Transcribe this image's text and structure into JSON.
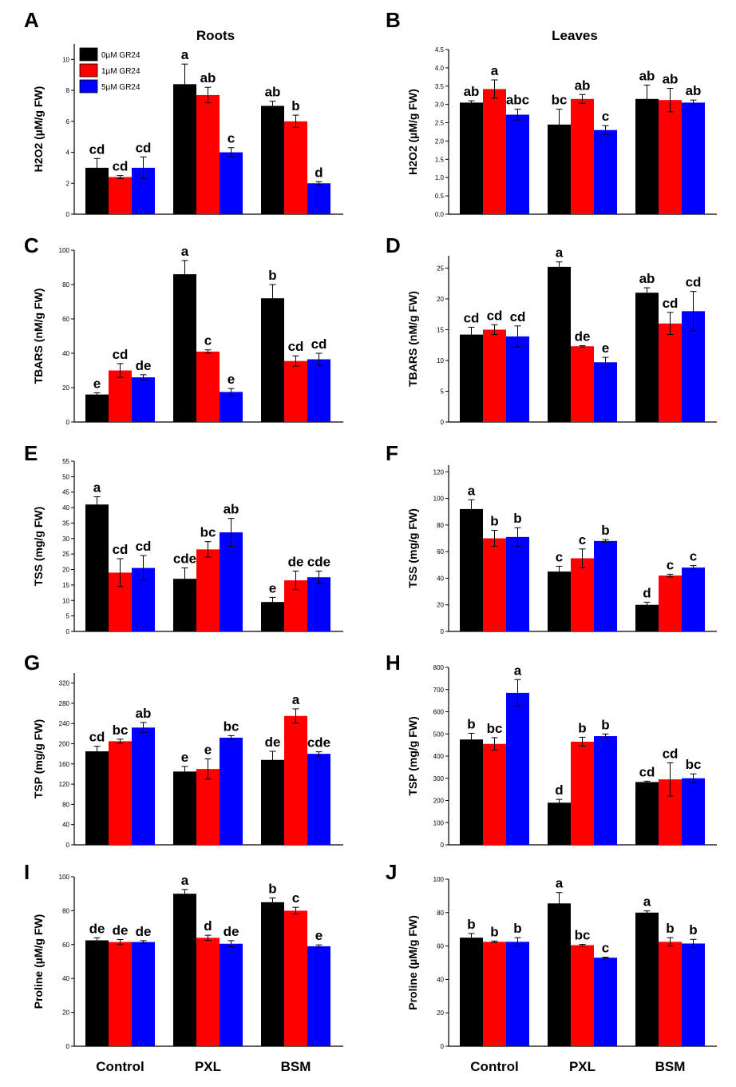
{
  "chart_data": {
    "legend": {
      "entries": [
        "0µM GR24",
        "1µM GR24",
        "5µM GR24"
      ],
      "colors": [
        "#000000",
        "#ff0000",
        "#0000ff"
      ]
    },
    "x_categories": [
      "Control",
      "PXL",
      "BSM"
    ],
    "panels": [
      {
        "id": "A",
        "type": "bar",
        "title": "Roots",
        "ylabel": "H2O2 (µM/g FW)",
        "ylim": [
          0,
          11
        ],
        "yticks": [
          0,
          2,
          4,
          6,
          8,
          10
        ],
        "ytick_labels": [
          "0",
          "2",
          "4",
          "6",
          "8",
          "10"
        ],
        "series": [
          {
            "name": "0µM GR24",
            "values": [
              3.0,
              8.4,
              7.0
            ],
            "errors": [
              0.6,
              1.3,
              0.3
            ],
            "labels": [
              "cd",
              "a",
              "ab"
            ]
          },
          {
            "name": "1µM GR24",
            "values": [
              2.4,
              7.7,
              6.0
            ],
            "errors": [
              0.1,
              0.5,
              0.4
            ],
            "labels": [
              "cd",
              "ab",
              "b"
            ]
          },
          {
            "name": "5µM GR24",
            "values": [
              3.0,
              4.0,
              2.0
            ],
            "errors": [
              0.7,
              0.3,
              0.1
            ],
            "labels": [
              "cd",
              "c",
              "d"
            ]
          }
        ]
      },
      {
        "id": "B",
        "type": "bar",
        "title": "Leaves",
        "ylabel": "H2O2 (µM/g FW)",
        "ylim": [
          0,
          4.5
        ],
        "yticks": [
          0,
          0.5,
          1,
          1.5,
          2,
          2.5,
          3,
          3.5,
          4,
          4.5
        ],
        "ytick_labels": [
          "0.0",
          "0.5",
          "1.0",
          "1.5",
          "2.0",
          "2.5",
          "3.0",
          "3.5",
          "4.0",
          "4.5"
        ],
        "series": [
          {
            "name": "0µM GR24",
            "values": [
              3.05,
              2.45,
              3.15
            ],
            "errors": [
              0.05,
              0.42,
              0.38
            ],
            "labels": [
              "ab",
              "bc",
              "ab"
            ]
          },
          {
            "name": "1µM GR24",
            "values": [
              3.42,
              3.15,
              3.12
            ],
            "errors": [
              0.25,
              0.12,
              0.32
            ],
            "labels": [
              "a",
              "ab",
              "ab"
            ]
          },
          {
            "name": "5µM GR24",
            "values": [
              2.72,
              2.3,
              3.05
            ],
            "errors": [
              0.15,
              0.12,
              0.07
            ],
            "labels": [
              "abc",
              "c",
              "ab"
            ]
          }
        ]
      },
      {
        "id": "C",
        "type": "bar",
        "title": "",
        "ylabel": "TBARS (nM/g FW)",
        "ylim": [
          0,
          100
        ],
        "yticks": [
          0,
          20,
          40,
          60,
          80,
          100
        ],
        "ytick_labels": [
          "0",
          "20",
          "40",
          "60",
          "80",
          "100"
        ],
        "series": [
          {
            "name": "0µM GR24",
            "values": [
              16,
              86,
              72
            ],
            "errors": [
              1,
              8,
              8
            ],
            "labels": [
              "e",
              "a",
              "b"
            ]
          },
          {
            "name": "1µM GR24",
            "values": [
              30,
              41,
              35.5
            ],
            "errors": [
              4,
              1,
              3
            ],
            "labels": [
              "cd",
              "c",
              "cd"
            ]
          },
          {
            "name": "5µM GR24",
            "values": [
              26,
              17.5,
              36.5
            ],
            "errors": [
              1.5,
              2,
              3.5
            ],
            "labels": [
              "de",
              "e",
              "cd"
            ]
          }
        ]
      },
      {
        "id": "D",
        "type": "bar",
        "title": "",
        "ylabel": "TBARS (nM/g FW)",
        "ylim": [
          0,
          27
        ],
        "yticks": [
          0,
          5,
          10,
          15,
          20,
          25
        ],
        "ytick_labels": [
          "0",
          "5",
          "10",
          "15",
          "20",
          "25"
        ],
        "series": [
          {
            "name": "0µM GR24",
            "values": [
              14.2,
              25.2,
              21
            ],
            "errors": [
              1.2,
              0.8,
              0.8
            ],
            "labels": [
              "cd",
              "a",
              "ab"
            ]
          },
          {
            "name": "1µM GR24",
            "values": [
              15,
              12.3,
              16
            ],
            "errors": [
              0.8,
              0.1,
              1.8
            ],
            "labels": [
              "cd",
              "de",
              "cd"
            ]
          },
          {
            "name": "5µM GR24",
            "values": [
              13.9,
              9.7,
              18
            ],
            "errors": [
              1.7,
              0.8,
              3.2
            ],
            "labels": [
              "cd",
              "e",
              "cd"
            ]
          }
        ]
      },
      {
        "id": "E",
        "type": "bar",
        "title": "",
        "ylabel": "TSS (mg/g FW)",
        "ylim": [
          0,
          55
        ],
        "yticks": [
          0,
          5,
          10,
          15,
          20,
          25,
          30,
          35,
          40,
          45,
          50,
          55
        ],
        "ytick_labels": [
          "0",
          "5",
          "10",
          "15",
          "20",
          "25",
          "30",
          "35",
          "40",
          "45",
          "50",
          "55"
        ],
        "series": [
          {
            "name": "0µM GR24",
            "values": [
              41,
              17,
              9.5
            ],
            "errors": [
              2.5,
              3.5,
              1.5
            ],
            "labels": [
              "a",
              "cde",
              "e"
            ]
          },
          {
            "name": "1µM GR24",
            "values": [
              19,
              26.5,
              16.5
            ],
            "errors": [
              4.5,
              2.5,
              3
            ],
            "labels": [
              "cd",
              "bc",
              "de"
            ]
          },
          {
            "name": "5µM GR24",
            "values": [
              20.5,
              32,
              17.5
            ],
            "errors": [
              4,
              4.5,
              2
            ],
            "labels": [
              "cd",
              "ab",
              "cde"
            ]
          }
        ]
      },
      {
        "id": "F",
        "type": "bar",
        "title": "",
        "ylabel": "TSS (mg/g FW)",
        "ylim": [
          0,
          125
        ],
        "yticks": [
          0,
          20,
          40,
          60,
          80,
          100,
          120
        ],
        "ytick_labels": [
          "0",
          "20",
          "40",
          "60",
          "80",
          "100",
          "120"
        ],
        "series": [
          {
            "name": "0µM GR24",
            "values": [
              92,
              45,
              20
            ],
            "errors": [
              7,
              4,
              2
            ],
            "labels": [
              "a",
              "c",
              "d"
            ]
          },
          {
            "name": "1µM GR24",
            "values": [
              70,
              55,
              42
            ],
            "errors": [
              6,
              7,
              1
            ],
            "labels": [
              "b",
              "c",
              "c"
            ]
          },
          {
            "name": "5µM GR24",
            "values": [
              71,
              68,
              48
            ],
            "errors": [
              7,
              1,
              1.5
            ],
            "labels": [
              "b",
              "b",
              "c"
            ]
          }
        ]
      },
      {
        "id": "G",
        "type": "bar",
        "title": "",
        "ylabel": "TSP (mg/g FW)",
        "ylim": [
          0,
          340
        ],
        "yticks": [
          0,
          40,
          80,
          120,
          160,
          200,
          240,
          280,
          320
        ],
        "ytick_labels": [
          "0",
          "40",
          "80",
          "120",
          "160",
          "200",
          "240",
          "280",
          "320"
        ],
        "series": [
          {
            "name": "0µM GR24",
            "values": [
              185,
              145,
              168
            ],
            "errors": [
              10,
              10,
              17
            ],
            "labels": [
              "cd",
              "e",
              "de"
            ]
          },
          {
            "name": "1µM GR24",
            "values": [
              205,
              150,
              255
            ],
            "errors": [
              4,
              20,
              14
            ],
            "labels": [
              "bc",
              "e",
              "a"
            ]
          },
          {
            "name": "5µM GR24",
            "values": [
              232,
              212,
              180
            ],
            "errors": [
              10,
              4,
              4
            ],
            "labels": [
              "ab",
              "bc",
              "cde"
            ]
          }
        ]
      },
      {
        "id": "H",
        "type": "bar",
        "title": "",
        "ylabel": "TSP (mg/g FW)",
        "ylim": [
          0,
          800
        ],
        "yticks": [
          0,
          100,
          200,
          300,
          400,
          500,
          600,
          700,
          800
        ],
        "ytick_labels": [
          "0",
          "100",
          "200",
          "300",
          "400",
          "500",
          "600",
          "700",
          "800"
        ],
        "series": [
          {
            "name": "0µM GR24",
            "values": [
              475,
              190,
              283
            ],
            "errors": [
              28,
              15,
              4
            ],
            "labels": [
              "b",
              "d",
              "cd"
            ]
          },
          {
            "name": "1µM GR24",
            "values": [
              455,
              465,
              295
            ],
            "errors": [
              28,
              20,
              75
            ],
            "labels": [
              "bc",
              "b",
              "cd"
            ]
          },
          {
            "name": "5µM GR24",
            "values": [
              685,
              490,
              300
            ],
            "errors": [
              60,
              10,
              20
            ],
            "labels": [
              "a",
              "b",
              "bc"
            ]
          }
        ]
      },
      {
        "id": "I",
        "type": "bar",
        "title": "",
        "ylabel": "Proline (µM/g FW)",
        "ylim": [
          0,
          100
        ],
        "yticks": [
          0,
          20,
          40,
          60,
          80,
          100
        ],
        "ytick_labels": [
          "0",
          "20",
          "40",
          "60",
          "80",
          "100"
        ],
        "series": [
          {
            "name": "0µM GR24",
            "values": [
              62.5,
              90,
              85
            ],
            "errors": [
              1.5,
              2.5,
              2.5
            ],
            "labels": [
              "de",
              "a",
              "b"
            ]
          },
          {
            "name": "1µM GR24",
            "values": [
              61.5,
              64,
              80
            ],
            "errors": [
              1.5,
              1.5,
              2
            ],
            "labels": [
              "de",
              "d",
              "c"
            ]
          },
          {
            "name": "5µM GR24",
            "values": [
              61.5,
              60.5,
              59
            ],
            "errors": [
              0.8,
              1.8,
              0.8
            ],
            "labels": [
              "de",
              "de",
              "e"
            ]
          }
        ]
      },
      {
        "id": "J",
        "type": "bar",
        "title": "",
        "ylabel": "Proline (µM/g FW)",
        "ylim": [
          0,
          100
        ],
        "yticks": [
          0,
          20,
          40,
          60,
          80,
          100
        ],
        "ytick_labels": [
          "0",
          "20",
          "40",
          "60",
          "80",
          "100"
        ],
        "series": [
          {
            "name": "0µM GR24",
            "values": [
              65,
              85.5,
              80
            ],
            "errors": [
              2.5,
              6.5,
              1
            ],
            "labels": [
              "b",
              "a",
              "a"
            ]
          },
          {
            "name": "1µM GR24",
            "values": [
              62.5,
              60.5,
              62.5
            ],
            "errors": [
              0.5,
              0.5,
              2.5
            ],
            "labels": [
              "b",
              "bc",
              "b"
            ]
          },
          {
            "name": "5µM GR24",
            "values": [
              62.5,
              53,
              61.5
            ],
            "errors": [
              2.5,
              0.3,
              2.5
            ],
            "labels": [
              "b",
              "c",
              "b"
            ]
          }
        ]
      }
    ]
  }
}
